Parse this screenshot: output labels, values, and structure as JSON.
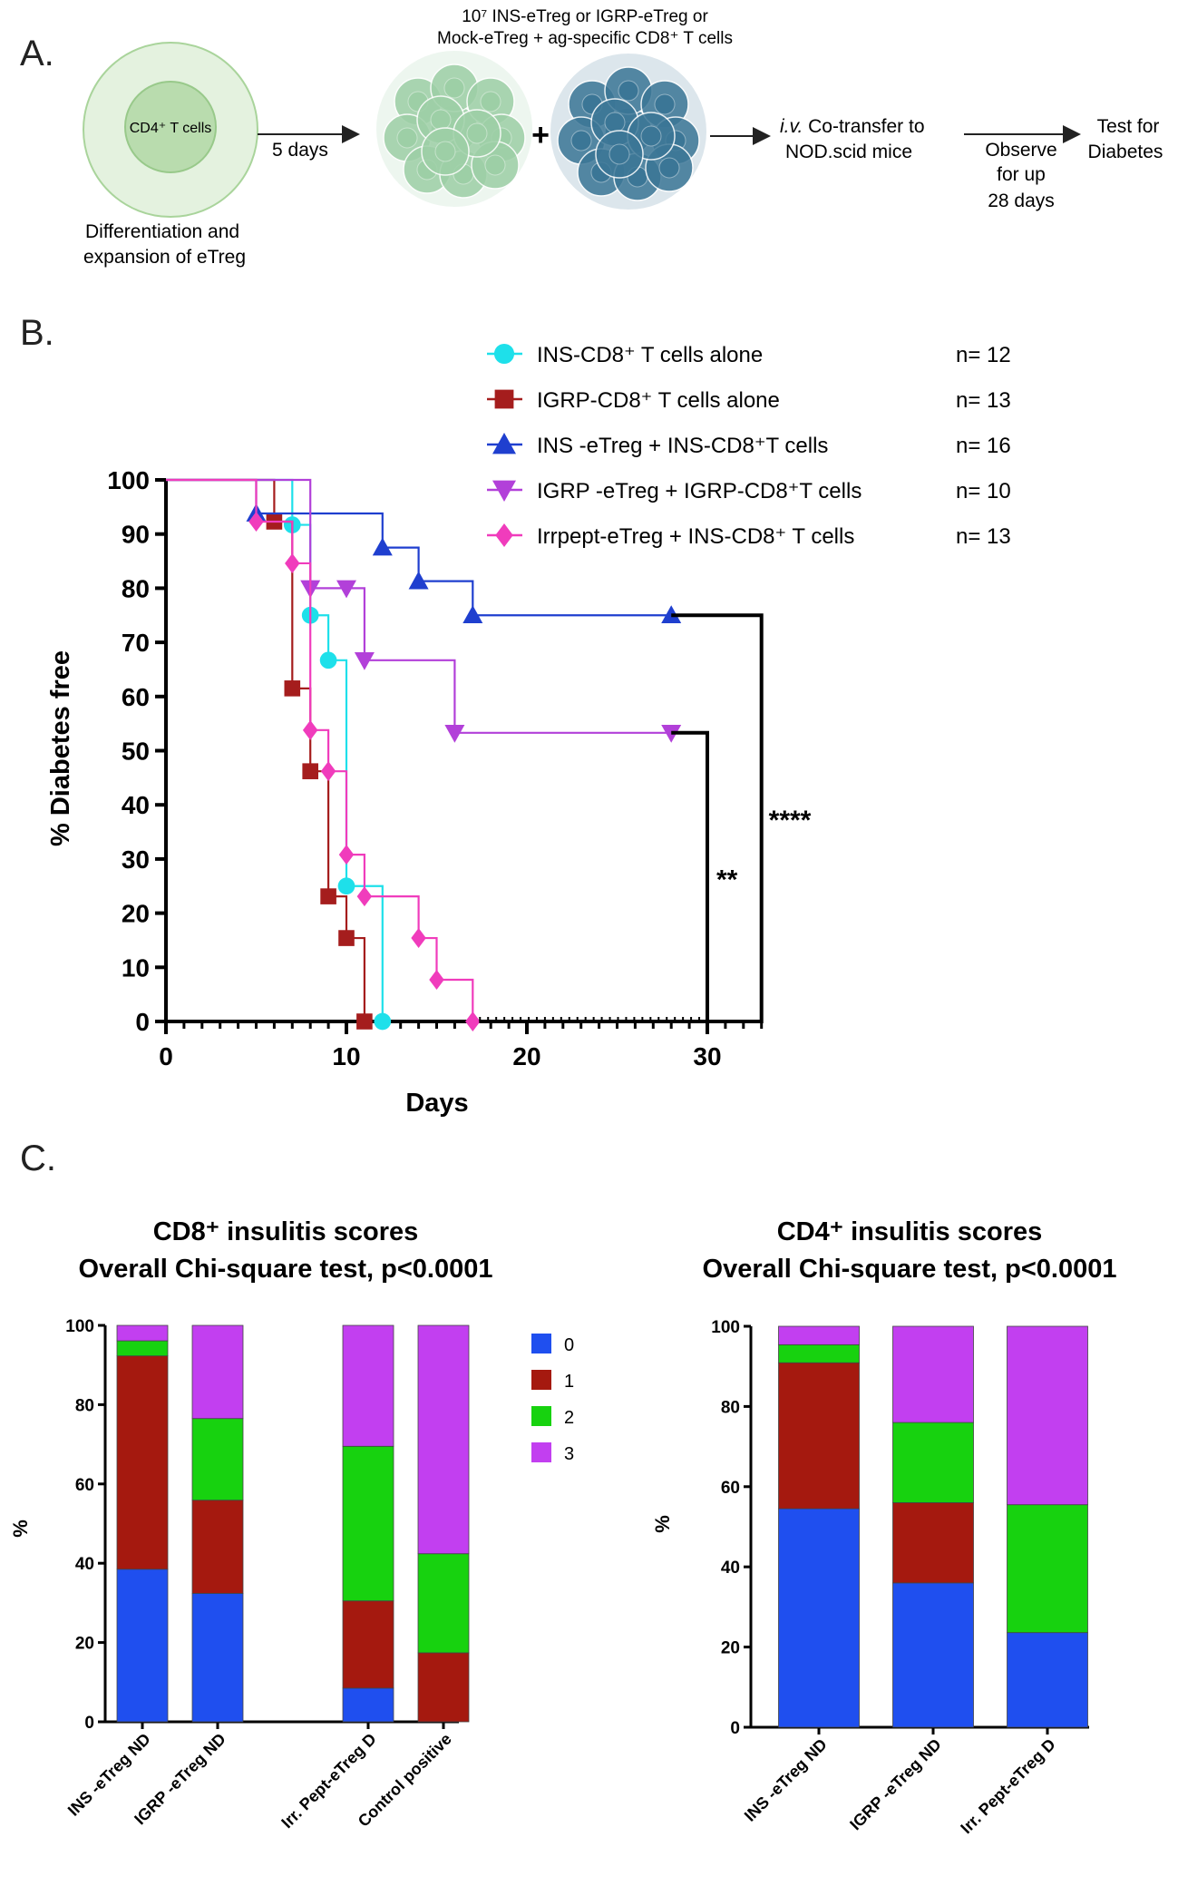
{
  "panels": {
    "a": "A.",
    "b": "B.",
    "c": "C."
  },
  "schematic": {
    "cd4_label": "CD4⁺ T cells",
    "days_label": "5 days",
    "differentiation_line1": "Differentiation and",
    "differentiation_line2": "expansion  of eTreg",
    "top_line1": "10⁷ INS-eTreg or IGRP-eTreg or",
    "top_line2": "Mock-eTreg  + ag-specific  CD8⁺ T cells",
    "plus": "+",
    "iv_italic": "i.v.",
    "cotransfer_rest": " Co-transfer to",
    "nod_label": "NOD.scid mice",
    "observe_line1": "Observe",
    "observe_line2": "for up",
    "observe_line3": "28  days",
    "test_line1": "Test   for",
    "test_line2": "Diabetes",
    "colors": {
      "outer_cell": "#e4f2df",
      "inner_cell": "#b9dcae",
      "green_cluster": "#9dcfa6",
      "blue_cluster": "#3b7696"
    }
  },
  "chart_data": [
    {
      "type": "line",
      "subtype": "kaplan-meier",
      "xlabel": "Days",
      "ylabel": "% Diabetes free",
      "xlim": [
        0,
        33
      ],
      "ylim": [
        0,
        100
      ],
      "xticks": [
        "0",
        "10",
        "20",
        "30"
      ],
      "yticks": [
        "0",
        "10",
        "20",
        "30",
        "40",
        "50",
        "60",
        "70",
        "80",
        "90",
        "100"
      ],
      "legend_position": "top-right",
      "series": [
        {
          "name": "INS-CD8⁺ T cells alone",
          "n_label": "n=  12",
          "color": "#1ee0ea",
          "marker": "circle",
          "x": [
            0,
            7,
            8,
            9,
            10,
            12
          ],
          "y": [
            100,
            91.7,
            75,
            66.7,
            25,
            0
          ],
          "end": 12
        },
        {
          "name": "IGRP-CD8⁺ T cells alone",
          "n_label": "n=  13",
          "color": "#a51d1d",
          "marker": "square",
          "x": [
            0,
            6,
            7,
            8,
            9,
            10,
            11
          ],
          "y": [
            100,
            92.3,
            61.5,
            46.2,
            23.1,
            15.4,
            0
          ],
          "end": 11
        },
        {
          "name": "INS -eTreg + INS-CD8⁺T cells",
          "n_label": "n=  16",
          "color": "#1f3fcf",
          "marker": "triangle-up",
          "x": [
            0,
            5,
            12,
            14,
            17,
            28
          ],
          "y": [
            100,
            93.8,
            87.5,
            81.3,
            75,
            75
          ],
          "end": 28
        },
        {
          "name": "IGRP -eTreg + IGRP-CD8⁺T cells",
          "n_label": "n=  10",
          "color": "#b240d9",
          "marker": "triangle-down",
          "x": [
            0,
            8,
            10,
            11,
            16,
            28
          ],
          "y": [
            100,
            80,
            80,
            66.7,
            53.3,
            53.3
          ],
          "end": 28
        },
        {
          "name": "Irrpept-eTreg + INS-CD8⁺ T cells",
          "n_label": "n=  13",
          "color": "#f03cbc",
          "marker": "diamond",
          "x": [
            0,
            5,
            7,
            8,
            9,
            10,
            11,
            14,
            15,
            17
          ],
          "y": [
            100,
            92.3,
            84.6,
            53.8,
            46.2,
            30.8,
            23.1,
            15.4,
            7.7,
            0
          ],
          "end": 17
        }
      ],
      "significance": [
        {
          "label": "**",
          "from_series": "IGRP -eTreg + IGRP-CD8⁺T cells",
          "bracket_x": 30
        },
        {
          "label": "****",
          "from_series": "INS -eTreg + INS-CD8⁺T cells",
          "bracket_x": 33
        }
      ]
    },
    {
      "type": "bar",
      "stacked": true,
      "title": "CD8⁺ insulitis  scores",
      "subtitle": "Overall Chi-square test, p<0.0001",
      "ylabel": "%",
      "ylim": [
        0,
        100
      ],
      "yticks": [
        "0",
        "20",
        "40",
        "60",
        "80",
        "100"
      ],
      "categories": [
        "INS -eTreg ND",
        "IGRP -eTreg ND",
        "",
        "Irr. Pept-eTreg D",
        "Control positive"
      ],
      "series": [
        {
          "name": "0",
          "color": "#1f4fef",
          "values": [
            38.5,
            32.4,
            0,
            8.5,
            0
          ]
        },
        {
          "name": "1",
          "color": "#a5190f",
          "values": [
            53.8,
            23.5,
            0,
            22,
            17.4
          ]
        },
        {
          "name": "2",
          "color": "#17d20f",
          "values": [
            3.8,
            20.6,
            0,
            39,
            25
          ]
        },
        {
          "name": "3",
          "color": "#c23ff0",
          "values": [
            3.9,
            23.5,
            0,
            30.5,
            57.6
          ]
        }
      ],
      "legend_position": "top-right"
    },
    {
      "type": "bar",
      "stacked": true,
      "title": "CD4⁺ insulitis  scores",
      "subtitle": "Overall Chi-square test, p<0.0001",
      "ylabel": "%",
      "ylim": [
        0,
        100
      ],
      "yticks": [
        "0",
        "20",
        "40",
        "60",
        "80",
        "100"
      ],
      "categories": [
        "INS -eTreg ND",
        "IGRP -eTreg ND",
        "Irr. Pept-eTreg D"
      ],
      "series": [
        {
          "name": "0",
          "color": "#1f4fef",
          "values": [
            54.5,
            36,
            23.6
          ]
        },
        {
          "name": "1",
          "color": "#a5190f",
          "values": [
            36.4,
            20,
            0
          ]
        },
        {
          "name": "2",
          "color": "#17d20f",
          "values": [
            4.5,
            20,
            31.9
          ]
        },
        {
          "name": "3",
          "color": "#c23ff0",
          "values": [
            4.6,
            24,
            44.5
          ]
        }
      ]
    }
  ]
}
